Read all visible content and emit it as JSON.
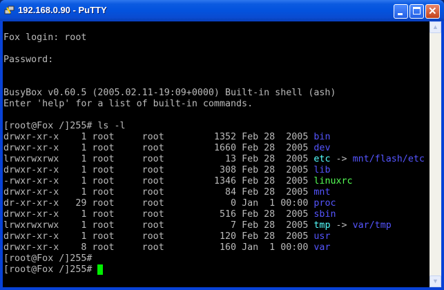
{
  "window": {
    "title": "192.168.0.90 - PuTTY",
    "icon": "putty-icon"
  },
  "terminal": {
    "colors": {
      "text": "#bbbbbb",
      "directory": "#5555ff",
      "symlink": "#55ffff",
      "executable": "#55ff55",
      "cursor": "#00ee00"
    },
    "preamble": [
      "",
      "Fox login: root",
      "",
      "Password:",
      "",
      "",
      "BusyBox v0.60.5 (2005.02.11-19:09+0000) Built-in shell (ash)",
      "Enter 'help' for a list of built-in commands.",
      "",
      "[root@Fox /]255# ls -l"
    ],
    "listing": [
      {
        "perms": "drwxr-xr-x",
        "links": "1",
        "owner": "root",
        "group": "root",
        "size": "1352",
        "date": "Feb 28  2005",
        "name": "bin",
        "type": "dir"
      },
      {
        "perms": "drwxr-xr-x",
        "links": "1",
        "owner": "root",
        "group": "root",
        "size": "1660",
        "date": "Feb 28  2005",
        "name": "dev",
        "type": "dir"
      },
      {
        "perms": "lrwxrwxrwx",
        "links": "1",
        "owner": "root",
        "group": "root",
        "size": "13",
        "date": "Feb 28  2005",
        "name": "etc",
        "type": "link",
        "target": "mnt/flash/etc"
      },
      {
        "perms": "drwxr-xr-x",
        "links": "1",
        "owner": "root",
        "group": "root",
        "size": "308",
        "date": "Feb 28  2005",
        "name": "lib",
        "type": "dir"
      },
      {
        "perms": "-rwxr-xr-x",
        "links": "1",
        "owner": "root",
        "group": "root",
        "size": "1346",
        "date": "Feb 28  2005",
        "name": "linuxrc",
        "type": "exe"
      },
      {
        "perms": "drwxr-xr-x",
        "links": "1",
        "owner": "root",
        "group": "root",
        "size": "84",
        "date": "Feb 28  2005",
        "name": "mnt",
        "type": "dir"
      },
      {
        "perms": "dr-xr-xr-x",
        "links": "29",
        "owner": "root",
        "group": "root",
        "size": "0",
        "date": "Jan  1 00:00",
        "name": "proc",
        "type": "dir"
      },
      {
        "perms": "drwxr-xr-x",
        "links": "1",
        "owner": "root",
        "group": "root",
        "size": "516",
        "date": "Feb 28  2005",
        "name": "sbin",
        "type": "dir"
      },
      {
        "perms": "lrwxrwxrwx",
        "links": "1",
        "owner": "root",
        "group": "root",
        "size": "7",
        "date": "Feb 28  2005",
        "name": "tmp",
        "type": "link",
        "target": "var/tmp"
      },
      {
        "perms": "drwxr-xr-x",
        "links": "1",
        "owner": "root",
        "group": "root",
        "size": "120",
        "date": "Feb 28  2005",
        "name": "usr",
        "type": "dir"
      },
      {
        "perms": "drwxr-xr-x",
        "links": "8",
        "owner": "root",
        "group": "root",
        "size": "160",
        "date": "Jan  1 00:00",
        "name": "var",
        "type": "dir"
      }
    ],
    "arrow": "->",
    "prompts": [
      "[root@Fox /]255#",
      "[root@Fox /]255# "
    ]
  }
}
